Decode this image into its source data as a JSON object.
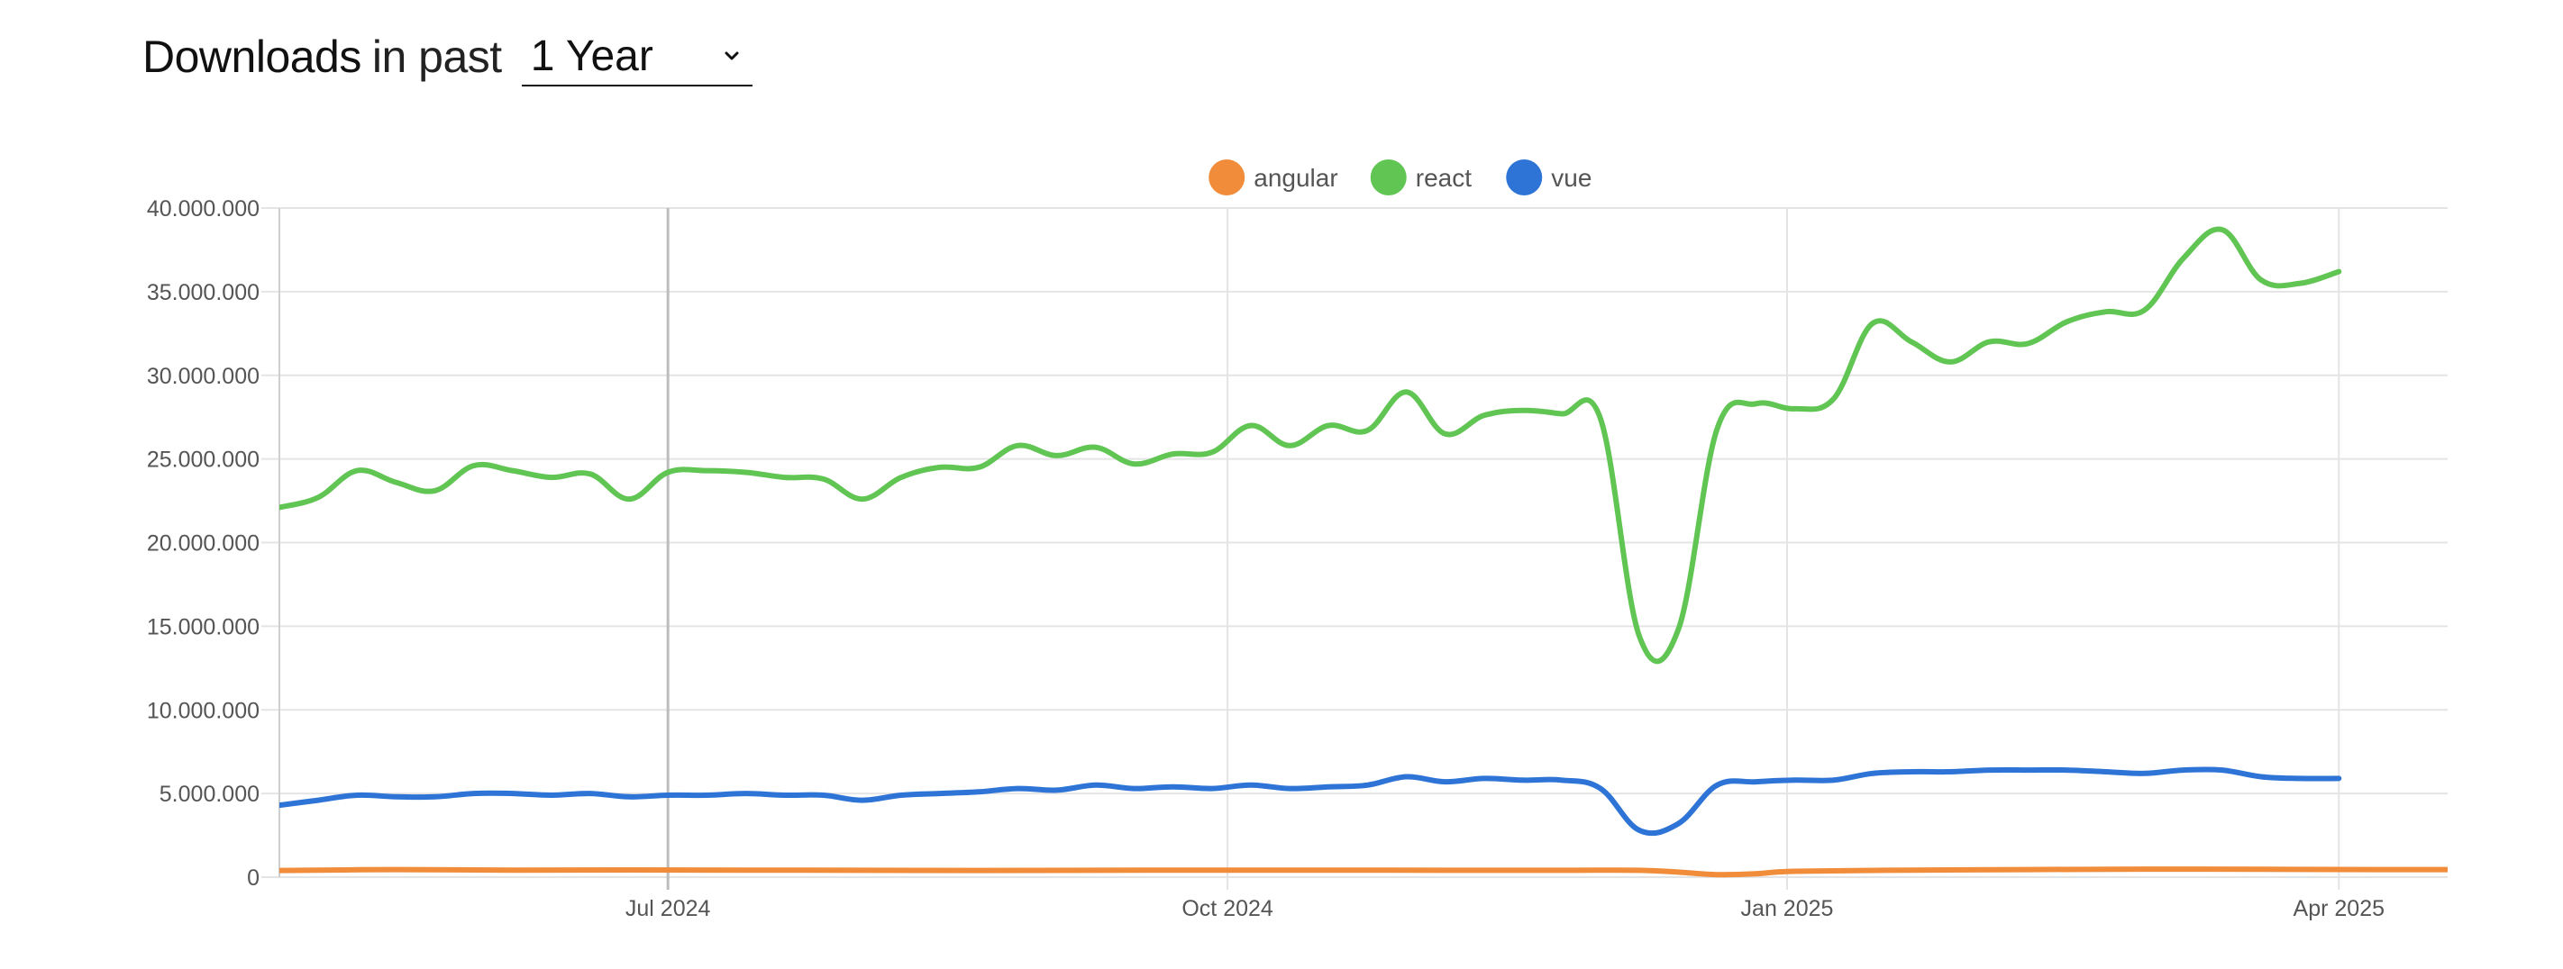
{
  "header": {
    "title_strong": "Downloads",
    "title_rest": "in past",
    "range_value": "1 Year"
  },
  "chart_data": {
    "type": "line",
    "title": "",
    "xlabel": "",
    "ylabel": "",
    "ylim": [
      0,
      40000000
    ],
    "y_ticks": [
      {
        "value": 0,
        "label": "0"
      },
      {
        "value": 5000000,
        "label": "5.000.000"
      },
      {
        "value": 10000000,
        "label": "10.000.000"
      },
      {
        "value": 15000000,
        "label": "15.000.000"
      },
      {
        "value": 20000000,
        "label": "20.000.000"
      },
      {
        "value": 25000000,
        "label": "25.000.000"
      },
      {
        "value": 30000000,
        "label": "30.000.000"
      },
      {
        "value": 35000000,
        "label": "35.000.000"
      },
      {
        "value": 40000000,
        "label": "40.000.000"
      }
    ],
    "xlim": [
      0,
      55.8
    ],
    "x_unit": "weeks since start",
    "x_ticks": [
      {
        "value": 10,
        "label": "Jul 2024"
      },
      {
        "value": 24.4,
        "label": "Oct 2024"
      },
      {
        "value": 38.8,
        "label": "Jan 2025"
      },
      {
        "value": 53,
        "label": "Apr 2025"
      }
    ],
    "legend": {
      "placement": "top-center"
    },
    "series": [
      {
        "name": "angular",
        "color": "#f08c3a",
        "points": [
          [
            0,
            400000
          ],
          [
            3,
            450000
          ],
          [
            6,
            420000
          ],
          [
            9,
            430000
          ],
          [
            12,
            420000
          ],
          [
            15,
            410000
          ],
          [
            18,
            400000
          ],
          [
            21,
            410000
          ],
          [
            24,
            420000
          ],
          [
            27,
            420000
          ],
          [
            30,
            410000
          ],
          [
            33,
            410000
          ],
          [
            35,
            410000
          ],
          [
            36,
            300000
          ],
          [
            37,
            150000
          ],
          [
            38,
            200000
          ],
          [
            39,
            350000
          ],
          [
            42,
            420000
          ],
          [
            45,
            450000
          ],
          [
            48,
            480000
          ],
          [
            51,
            470000
          ],
          [
            54,
            450000
          ],
          [
            55.8,
            450000
          ]
        ]
      },
      {
        "name": "react",
        "color": "#61c554",
        "points": [
          [
            0,
            22100000
          ],
          [
            1,
            22700000
          ],
          [
            2,
            24300000
          ],
          [
            3,
            23600000
          ],
          [
            4,
            23100000
          ],
          [
            5,
            24600000
          ],
          [
            6,
            24300000
          ],
          [
            7,
            23900000
          ],
          [
            8,
            24100000
          ],
          [
            9,
            22600000
          ],
          [
            10,
            24200000
          ],
          [
            11,
            24300000
          ],
          [
            12,
            24200000
          ],
          [
            13,
            23900000
          ],
          [
            14,
            23800000
          ],
          [
            15,
            22600000
          ],
          [
            16,
            23900000
          ],
          [
            17,
            24500000
          ],
          [
            18,
            24500000
          ],
          [
            19,
            25800000
          ],
          [
            20,
            25200000
          ],
          [
            21,
            25700000
          ],
          [
            22,
            24700000
          ],
          [
            23,
            25300000
          ],
          [
            24,
            25400000
          ],
          [
            25,
            27000000
          ],
          [
            26,
            25800000
          ],
          [
            27,
            27000000
          ],
          [
            28,
            26700000
          ],
          [
            29,
            29000000
          ],
          [
            30,
            26500000
          ],
          [
            31,
            27600000
          ],
          [
            32,
            27900000
          ],
          [
            33,
            27700000
          ],
          [
            34,
            27400000
          ],
          [
            35,
            14400000
          ],
          [
            36,
            14800000
          ],
          [
            37,
            26800000
          ],
          [
            38,
            28300000
          ],
          [
            39,
            28000000
          ],
          [
            40,
            28600000
          ],
          [
            41,
            33100000
          ],
          [
            42,
            32000000
          ],
          [
            43,
            30800000
          ],
          [
            44,
            32000000
          ],
          [
            45,
            31900000
          ],
          [
            46,
            33200000
          ],
          [
            47,
            33800000
          ],
          [
            48,
            33900000
          ],
          [
            49,
            37000000
          ],
          [
            50,
            38700000
          ],
          [
            51,
            35700000
          ],
          [
            52,
            35500000
          ],
          [
            53,
            36200000
          ]
        ]
      },
      {
        "name": "vue",
        "color": "#2d74d6",
        "points": [
          [
            0,
            4300000
          ],
          [
            1,
            4600000
          ],
          [
            2,
            4900000
          ],
          [
            3,
            4800000
          ],
          [
            4,
            4800000
          ],
          [
            5,
            5000000
          ],
          [
            6,
            5000000
          ],
          [
            7,
            4900000
          ],
          [
            8,
            5000000
          ],
          [
            9,
            4800000
          ],
          [
            10,
            4900000
          ],
          [
            11,
            4900000
          ],
          [
            12,
            5000000
          ],
          [
            13,
            4900000
          ],
          [
            14,
            4900000
          ],
          [
            15,
            4600000
          ],
          [
            16,
            4900000
          ],
          [
            17,
            5000000
          ],
          [
            18,
            5100000
          ],
          [
            19,
            5300000
          ],
          [
            20,
            5200000
          ],
          [
            21,
            5500000
          ],
          [
            22,
            5300000
          ],
          [
            23,
            5400000
          ],
          [
            24,
            5300000
          ],
          [
            25,
            5500000
          ],
          [
            26,
            5300000
          ],
          [
            27,
            5400000
          ],
          [
            28,
            5500000
          ],
          [
            29,
            6000000
          ],
          [
            30,
            5700000
          ],
          [
            31,
            5900000
          ],
          [
            32,
            5800000
          ],
          [
            33,
            5800000
          ],
          [
            34,
            5300000
          ],
          [
            35,
            2800000
          ],
          [
            36,
            3200000
          ],
          [
            37,
            5500000
          ],
          [
            38,
            5700000
          ],
          [
            39,
            5800000
          ],
          [
            40,
            5800000
          ],
          [
            41,
            6200000
          ],
          [
            42,
            6300000
          ],
          [
            43,
            6300000
          ],
          [
            44,
            6400000
          ],
          [
            45,
            6400000
          ],
          [
            46,
            6400000
          ],
          [
            47,
            6300000
          ],
          [
            48,
            6200000
          ],
          [
            49,
            6400000
          ],
          [
            50,
            6400000
          ],
          [
            51,
            6000000
          ],
          [
            52,
            5900000
          ],
          [
            53,
            5900000
          ]
        ]
      }
    ]
  }
}
